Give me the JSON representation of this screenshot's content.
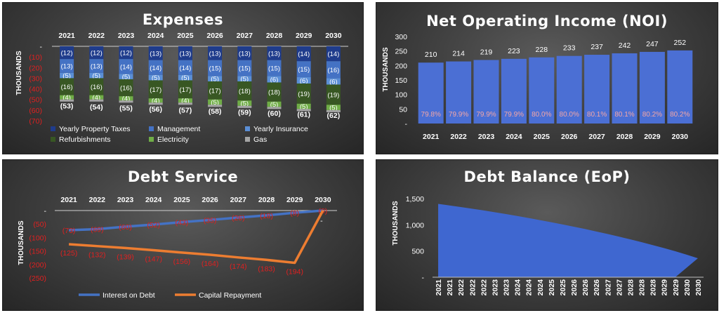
{
  "colors": {
    "property_taxes": "#1f3c8c",
    "management": "#4472c4",
    "insurance": "#5b8fd6",
    "refurbishments": "#385723",
    "electricity": "#70ad47",
    "gas": "#a5a5a5",
    "noi_bar": "#4b6fd4",
    "interest_line": "#4472c4",
    "capital_line": "#ed7d31",
    "debt_area": "#3f67d0",
    "negative_label": "#e02020",
    "noi_pct": "#f4a6a6"
  },
  "chart_data": [
    {
      "type": "bar",
      "stacked": true,
      "title": "Expenses",
      "ylabel": "THOUSANDS",
      "categories": [
        "2021",
        "2022",
        "2023",
        "2024",
        "2025",
        "2026",
        "2027",
        "2028",
        "2029",
        "2030"
      ],
      "ylim": [
        -70,
        0
      ],
      "yticks": [
        0,
        -10,
        -20,
        -30,
        -40,
        -50,
        -60,
        -70
      ],
      "ytick_labels": [
        "-",
        "(10)",
        "(20)",
        "(30)",
        "(40)",
        "(50)",
        "(60)",
        "(70)"
      ],
      "series": [
        {
          "name": "Yearly Property Taxes",
          "values": [
            -12,
            -12,
            -12,
            -13,
            -13,
            -13,
            -13,
            -13,
            -14,
            -14
          ],
          "labels": [
            "(12)",
            "(12)",
            "(12)",
            "(13)",
            "(13)",
            "(13)",
            "(13)",
            "(13)",
            "(14)",
            "(14)"
          ]
        },
        {
          "name": "Management",
          "values": [
            -13,
            -13,
            -14,
            -14,
            -14,
            -15,
            -15,
            -15,
            -15,
            -16
          ],
          "labels": [
            "(13)",
            "(13)",
            "(14)",
            "(14)",
            "(14)",
            "(15)",
            "(15)",
            "(15)",
            "(15)",
            "(16)"
          ]
        },
        {
          "name": "Yearly Insurance",
          "values": [
            -5,
            -5,
            -5,
            -5,
            -5,
            -5,
            -5,
            -6,
            -6,
            -6
          ],
          "labels": [
            "(5)",
            "(5)",
            "(5)",
            "(5)",
            "(5)",
            "(5)",
            "(5)",
            "(6)",
            "(6)",
            "(6)"
          ]
        },
        {
          "name": "Refurbishments",
          "values": [
            -16,
            -16,
            -16,
            -17,
            -17,
            -17,
            -18,
            -18,
            -19,
            -19
          ],
          "labels": [
            "(16)",
            "(16)",
            "(16)",
            "(17)",
            "(17)",
            "(17)",
            "(18)",
            "(18)",
            "(19)",
            "(19)"
          ]
        },
        {
          "name": "Electricity",
          "values": [
            -4,
            -4,
            -4,
            -4,
            -4,
            -5,
            -5,
            -5,
            -5,
            -5
          ],
          "labels": [
            "(4)",
            "(4)",
            "(4)",
            "(4)",
            "(4)",
            "(5)",
            "(5)",
            "(5)",
            "(5)",
            "(5)"
          ]
        },
        {
          "name": "Gas",
          "values": [
            -2,
            -2,
            -2,
            -2,
            -2,
            -2,
            -2,
            -2,
            -2,
            -2
          ],
          "labels": [
            "",
            "",
            "",
            "",
            "",
            "",
            "",
            "",
            "",
            ""
          ]
        }
      ],
      "totals": [
        -53,
        -54,
        -55,
        -56,
        -57,
        -58,
        -59,
        -60,
        -61,
        -62
      ],
      "total_labels": [
        "(53)",
        "(54)",
        "(55)",
        "(56)",
        "(57)",
        "(58)",
        "(59)",
        "(60)",
        "(61)",
        "(62)"
      ],
      "legend": "bottom"
    },
    {
      "type": "bar",
      "title": "Net Operating Income (NOI)",
      "ylabel": "THOUSANDS",
      "categories": [
        "2021",
        "2022",
        "2023",
        "2024",
        "2025",
        "2026",
        "2027",
        "2028",
        "2029",
        "2030"
      ],
      "values": [
        210,
        214,
        219,
        223,
        228,
        233,
        237,
        242,
        247,
        252
      ],
      "pct_labels": [
        "79.8%",
        "79.9%",
        "79.9%",
        "79.9%",
        "80.0%",
        "80.0%",
        "80.1%",
        "80.1%",
        "80.2%",
        "80.2%"
      ],
      "ylim": [
        0,
        300
      ],
      "yticks": [
        0,
        50,
        100,
        150,
        200,
        250,
        300
      ],
      "ytick_labels": [
        "-",
        "50",
        "100",
        "150",
        "200",
        "250",
        "300"
      ]
    },
    {
      "type": "line",
      "title": "Debt Service",
      "ylabel": "THOUSANDS",
      "categories": [
        "2021",
        "2022",
        "2023",
        "2024",
        "2025",
        "2026",
        "2027",
        "2028",
        "2029",
        "2030"
      ],
      "ylim": [
        -250,
        0
      ],
      "yticks": [
        0,
        -50,
        -100,
        -150,
        -200,
        -250
      ],
      "ytick_labels": [
        "-",
        "(50)",
        "(100)",
        "(150)",
        "(200)",
        "(250)"
      ],
      "series": [
        {
          "name": "Interest on Debt",
          "values": [
            -73,
            -69,
            -60,
            -52,
            -43,
            -35,
            -26,
            -18,
            -8,
            0
          ],
          "labels": [
            "(73)",
            "(69)",
            "(60)",
            "(52)",
            "(43)",
            "(35)",
            "(26)",
            "(18)",
            "(8)",
            "(0)"
          ]
        },
        {
          "name": "Capital Repayment",
          "values": [
            -125,
            -132,
            -139,
            -147,
            -156,
            -164,
            -174,
            -183,
            -194,
            0
          ],
          "labels": [
            "(125)",
            "(132)",
            "(139)",
            "(147)",
            "(156)",
            "(164)",
            "(174)",
            "(183)",
            "(194)",
            "-"
          ]
        }
      ],
      "legend": "bottom"
    },
    {
      "type": "area",
      "title": "Debt Balance (EoP)",
      "ylabel": "THOUSANDS",
      "x": [
        "2021",
        "2021",
        "2022",
        "2022",
        "2022",
        "2023",
        "2023",
        "2024",
        "2024",
        "2024",
        "2025",
        "2025",
        "2026",
        "2026",
        "2026",
        "2027",
        "2027",
        "2028",
        "2028",
        "2028",
        "2029",
        "2029",
        "2030",
        "2030"
      ],
      "values": [
        1400,
        1370,
        1340,
        1308,
        1275,
        1240,
        1205,
        1168,
        1130,
        1090,
        1050,
        1008,
        965,
        920,
        873,
        825,
        775,
        723,
        669,
        613,
        555,
        495,
        430,
        362
      ],
      "ylim": [
        0,
        1500
      ],
      "yticks": [
        0,
        500,
        1000,
        1500
      ],
      "ytick_labels": [
        "-",
        "500",
        "1,000",
        "1,500"
      ]
    }
  ]
}
